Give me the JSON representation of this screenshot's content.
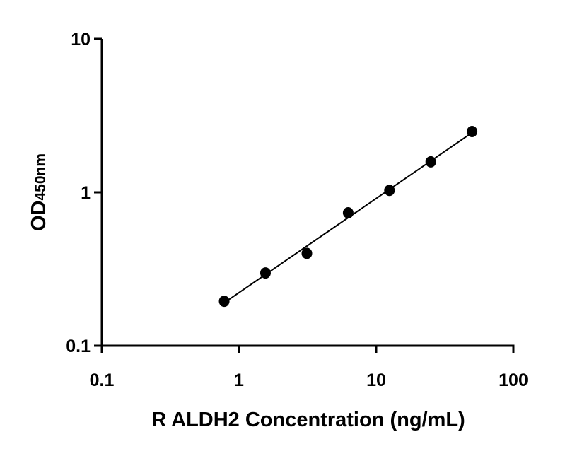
{
  "chart_data": {
    "type": "scatter",
    "title": "",
    "xlabel": "R ALDH2 Concentration (ng/mL)",
    "ylabel_main": "OD",
    "ylabel_sub": "450nm",
    "x_scale": "log",
    "y_scale": "log",
    "xlim": [
      0.1,
      100
    ],
    "ylim": [
      0.1,
      10
    ],
    "x_ticks": [
      "0.1",
      "1",
      "10",
      "100"
    ],
    "y_ticks": [
      "0.1",
      "1",
      "10"
    ],
    "grid": false,
    "fit_line": "linear fit in log-log",
    "points": [
      {
        "x": 0.78,
        "y": 0.195
      },
      {
        "x": 1.56,
        "y": 0.298
      },
      {
        "x": 3.125,
        "y": 0.4
      },
      {
        "x": 6.25,
        "y": 0.735
      },
      {
        "x": 12.5,
        "y": 1.03
      },
      {
        "x": 25,
        "y": 1.58
      },
      {
        "x": 50,
        "y": 2.49
      }
    ],
    "marker_color": "#000000",
    "line_color": "#000000"
  }
}
